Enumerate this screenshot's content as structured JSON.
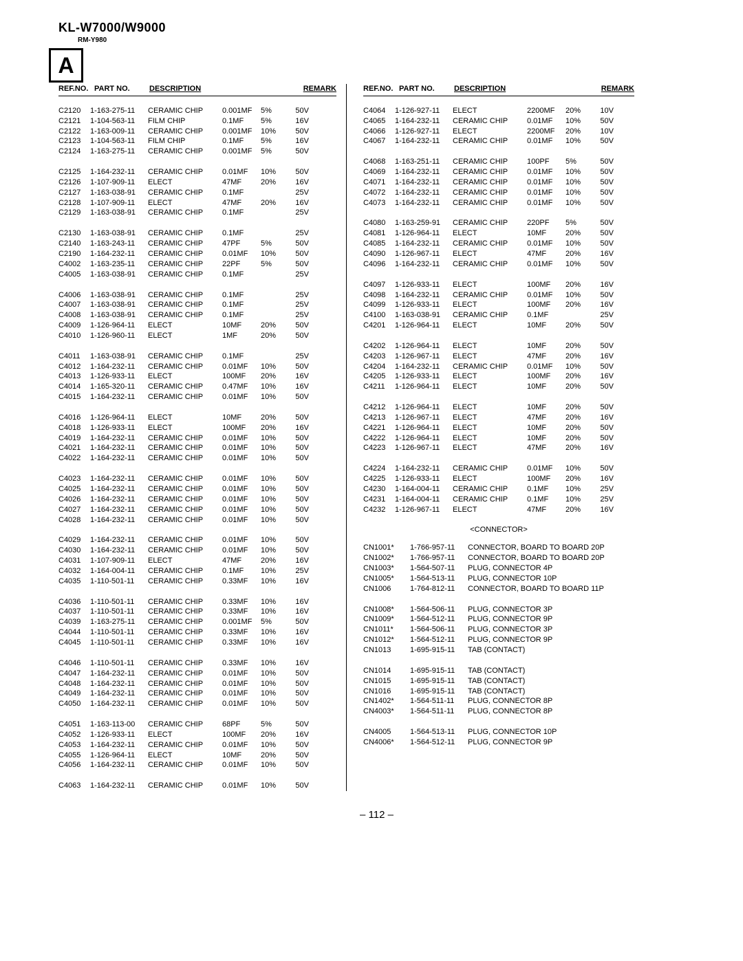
{
  "model_title": "KL-W7000/W9000",
  "sub_model": "RM-Y980",
  "box_letter": "A",
  "page_number": "– 112 –",
  "headers": {
    "ref": "REF.NO.",
    "part": "PART NO.",
    "desc": "DESCRIPTION",
    "remark": "REMARK"
  },
  "section_connector": "<CONNECTOR>",
  "left": [
    {
      "r": "C2120",
      "p": "1-163-275-11",
      "d": "CERAMIC CHIP",
      "v": "0.001MF",
      "t": "5%",
      "m": "50V"
    },
    {
      "r": "C2121",
      "p": "1-104-563-11",
      "d": "FILM CHIP",
      "v": "0.1MF",
      "t": "5%",
      "m": "16V"
    },
    {
      "r": "C2122",
      "p": "1-163-009-11",
      "d": "CERAMIC CHIP",
      "v": "0.001MF",
      "t": "10%",
      "m": "50V"
    },
    {
      "r": "C2123",
      "p": "1-104-563-11",
      "d": "FILM CHIP",
      "v": "0.1MF",
      "t": "5%",
      "m": "16V"
    },
    {
      "r": "C2124",
      "p": "1-163-275-11",
      "d": "CERAMIC CHIP",
      "v": "0.001MF",
      "t": "5%",
      "m": "50V"
    },
    "blank",
    {
      "r": "C2125",
      "p": "1-164-232-11",
      "d": "CERAMIC CHIP",
      "v": "0.01MF",
      "t": "10%",
      "m": "50V"
    },
    {
      "r": "C2126",
      "p": "1-107-909-11",
      "d": "ELECT",
      "v": "47MF",
      "t": "20%",
      "m": "16V"
    },
    {
      "r": "C2127",
      "p": "1-163-038-91",
      "d": "CERAMIC CHIP",
      "v": "0.1MF",
      "t": "",
      "m": "25V"
    },
    {
      "r": "C2128",
      "p": "1-107-909-11",
      "d": "ELECT",
      "v": "47MF",
      "t": "20%",
      "m": "16V"
    },
    {
      "r": "C2129",
      "p": "1-163-038-91",
      "d": "CERAMIC CHIP",
      "v": "0.1MF",
      "t": "",
      "m": "25V"
    },
    "blank",
    {
      "r": "C2130",
      "p": "1-163-038-91",
      "d": "CERAMIC CHIP",
      "v": "0.1MF",
      "t": "",
      "m": "25V"
    },
    {
      "r": "C2140",
      "p": "1-163-243-11",
      "d": "CERAMIC CHIP",
      "v": "47PF",
      "t": "5%",
      "m": "50V"
    },
    {
      "r": "C2190",
      "p": "1-164-232-11",
      "d": "CERAMIC CHIP",
      "v": "0.01MF",
      "t": "10%",
      "m": "50V"
    },
    {
      "r": "C4002",
      "p": "1-163-235-11",
      "d": "CERAMIC CHIP",
      "v": "22PF",
      "t": "5%",
      "m": "50V"
    },
    {
      "r": "C4005",
      "p": "1-163-038-91",
      "d": "CERAMIC CHIP",
      "v": "0.1MF",
      "t": "",
      "m": "25V"
    },
    "blank",
    {
      "r": "C4006",
      "p": "1-163-038-91",
      "d": "CERAMIC CHIP",
      "v": "0.1MF",
      "t": "",
      "m": "25V"
    },
    {
      "r": "C4007",
      "p": "1-163-038-91",
      "d": "CERAMIC CHIP",
      "v": "0.1MF",
      "t": "",
      "m": "25V"
    },
    {
      "r": "C4008",
      "p": "1-163-038-91",
      "d": "CERAMIC CHIP",
      "v": "0.1MF",
      "t": "",
      "m": "25V"
    },
    {
      "r": "C4009",
      "p": "1-126-964-11",
      "d": "ELECT",
      "v": "10MF",
      "t": "20%",
      "m": "50V"
    },
    {
      "r": "C4010",
      "p": "1-126-960-11",
      "d": "ELECT",
      "v": "1MF",
      "t": "20%",
      "m": "50V"
    },
    "blank",
    {
      "r": "C4011",
      "p": "1-163-038-91",
      "d": "CERAMIC CHIP",
      "v": "0.1MF",
      "t": "",
      "m": "25V"
    },
    {
      "r": "C4012",
      "p": "1-164-232-11",
      "d": "CERAMIC CHIP",
      "v": "0.01MF",
      "t": "10%",
      "m": "50V"
    },
    {
      "r": "C4013",
      "p": "1-126-933-11",
      "d": "ELECT",
      "v": "100MF",
      "t": "20%",
      "m": "16V"
    },
    {
      "r": "C4014",
      "p": "1-165-320-11",
      "d": "CERAMIC CHIP",
      "v": "0.47MF",
      "t": "10%",
      "m": "16V"
    },
    {
      "r": "C4015",
      "p": "1-164-232-11",
      "d": "CERAMIC CHIP",
      "v": "0.01MF",
      "t": "10%",
      "m": "50V"
    },
    "blank",
    {
      "r": "C4016",
      "p": "1-126-964-11",
      "d": "ELECT",
      "v": "10MF",
      "t": "20%",
      "m": "50V"
    },
    {
      "r": "C4018",
      "p": "1-126-933-11",
      "d": "ELECT",
      "v": "100MF",
      "t": "20%",
      "m": "16V"
    },
    {
      "r": "C4019",
      "p": "1-164-232-11",
      "d": "CERAMIC CHIP",
      "v": "0.01MF",
      "t": "10%",
      "m": "50V"
    },
    {
      "r": "C4021",
      "p": "1-164-232-11",
      "d": "CERAMIC CHIP",
      "v": "0.01MF",
      "t": "10%",
      "m": "50V"
    },
    {
      "r": "C4022",
      "p": "1-164-232-11",
      "d": "CERAMIC CHIP",
      "v": "0.01MF",
      "t": "10%",
      "m": "50V"
    },
    "blank",
    {
      "r": "C4023",
      "p": "1-164-232-11",
      "d": "CERAMIC CHIP",
      "v": "0.01MF",
      "t": "10%",
      "m": "50V"
    },
    {
      "r": "C4025",
      "p": "1-164-232-11",
      "d": "CERAMIC CHIP",
      "v": "0.01MF",
      "t": "10%",
      "m": "50V"
    },
    {
      "r": "C4026",
      "p": "1-164-232-11",
      "d": "CERAMIC CHIP",
      "v": "0.01MF",
      "t": "10%",
      "m": "50V"
    },
    {
      "r": "C4027",
      "p": "1-164-232-11",
      "d": "CERAMIC CHIP",
      "v": "0.01MF",
      "t": "10%",
      "m": "50V"
    },
    {
      "r": "C4028",
      "p": "1-164-232-11",
      "d": "CERAMIC CHIP",
      "v": "0.01MF",
      "t": "10%",
      "m": "50V"
    },
    "blank",
    {
      "r": "C4029",
      "p": "1-164-232-11",
      "d": "CERAMIC CHIP",
      "v": "0.01MF",
      "t": "10%",
      "m": "50V"
    },
    {
      "r": "C4030",
      "p": "1-164-232-11",
      "d": "CERAMIC CHIP",
      "v": "0.01MF",
      "t": "10%",
      "m": "50V"
    },
    {
      "r": "C4031",
      "p": "1-107-909-11",
      "d": "ELECT",
      "v": "47MF",
      "t": "20%",
      "m": "16V"
    },
    {
      "r": "C4032",
      "p": "1-164-004-11",
      "d": "CERAMIC CHIP",
      "v": "0.1MF",
      "t": "10%",
      "m": "25V"
    },
    {
      "r": "C4035",
      "p": "1-110-501-11",
      "d": "CERAMIC CHIP",
      "v": "0.33MF",
      "t": "10%",
      "m": "16V"
    },
    "blank",
    {
      "r": "C4036",
      "p": "1-110-501-11",
      "d": "CERAMIC CHIP",
      "v": "0.33MF",
      "t": "10%",
      "m": "16V"
    },
    {
      "r": "C4037",
      "p": "1-110-501-11",
      "d": "CERAMIC CHIP",
      "v": "0.33MF",
      "t": "10%",
      "m": "16V"
    },
    {
      "r": "C4039",
      "p": "1-163-275-11",
      "d": "CERAMIC CHIP",
      "v": "0.001MF",
      "t": "5%",
      "m": "50V"
    },
    {
      "r": "C4044",
      "p": "1-110-501-11",
      "d": "CERAMIC CHIP",
      "v": "0.33MF",
      "t": "10%",
      "m": "16V"
    },
    {
      "r": "C4045",
      "p": "1-110-501-11",
      "d": "CERAMIC CHIP",
      "v": "0.33MF",
      "t": "10%",
      "m": "16V"
    },
    "blank",
    {
      "r": "C4046",
      "p": "1-110-501-11",
      "d": "CERAMIC CHIP",
      "v": "0.33MF",
      "t": "10%",
      "m": "16V"
    },
    {
      "r": "C4047",
      "p": "1-164-232-11",
      "d": "CERAMIC CHIP",
      "v": "0.01MF",
      "t": "10%",
      "m": "50V"
    },
    {
      "r": "C4048",
      "p": "1-164-232-11",
      "d": "CERAMIC CHIP",
      "v": "0.01MF",
      "t": "10%",
      "m": "50V"
    },
    {
      "r": "C4049",
      "p": "1-164-232-11",
      "d": "CERAMIC CHIP",
      "v": "0.01MF",
      "t": "10%",
      "m": "50V"
    },
    {
      "r": "C4050",
      "p": "1-164-232-11",
      "d": "CERAMIC CHIP",
      "v": "0.01MF",
      "t": "10%",
      "m": "50V"
    },
    "blank",
    {
      "r": "C4051",
      "p": "1-163-113-00",
      "d": "CERAMIC CHIP",
      "v": "68PF",
      "t": "5%",
      "m": "50V"
    },
    {
      "r": "C4052",
      "p": "1-126-933-11",
      "d": "ELECT",
      "v": "100MF",
      "t": "20%",
      "m": "16V"
    },
    {
      "r": "C4053",
      "p": "1-164-232-11",
      "d": "CERAMIC CHIP",
      "v": "0.01MF",
      "t": "10%",
      "m": "50V"
    },
    {
      "r": "C4055",
      "p": "1-126-964-11",
      "d": "ELECT",
      "v": "10MF",
      "t": "20%",
      "m": "50V"
    },
    {
      "r": "C4056",
      "p": "1-164-232-11",
      "d": "CERAMIC CHIP",
      "v": "0.01MF",
      "t": "10%",
      "m": "50V"
    },
    "blank",
    {
      "r": "C4063",
      "p": "1-164-232-11",
      "d": "CERAMIC CHIP",
      "v": "0.01MF",
      "t": "10%",
      "m": "50V"
    }
  ],
  "right": [
    {
      "r": "C4064",
      "p": "1-126-927-11",
      "d": "ELECT",
      "v": "2200MF",
      "t": "20%",
      "m": "10V"
    },
    {
      "r": "C4065",
      "p": "1-164-232-11",
      "d": "CERAMIC CHIP",
      "v": "0.01MF",
      "t": "10%",
      "m": "50V"
    },
    {
      "r": "C4066",
      "p": "1-126-927-11",
      "d": "ELECT",
      "v": "2200MF",
      "t": "20%",
      "m": "10V"
    },
    {
      "r": "C4067",
      "p": "1-164-232-11",
      "d": "CERAMIC CHIP",
      "v": "0.01MF",
      "t": "10%",
      "m": "50V"
    },
    "blank",
    {
      "r": "C4068",
      "p": "1-163-251-11",
      "d": "CERAMIC CHIP",
      "v": "100PF",
      "t": "5%",
      "m": "50V"
    },
    {
      "r": "C4069",
      "p": "1-164-232-11",
      "d": "CERAMIC CHIP",
      "v": "0.01MF",
      "t": "10%",
      "m": "50V"
    },
    {
      "r": "C4071",
      "p": "1-164-232-11",
      "d": "CERAMIC CHIP",
      "v": "0.01MF",
      "t": "10%",
      "m": "50V"
    },
    {
      "r": "C4072",
      "p": "1-164-232-11",
      "d": "CERAMIC CHIP",
      "v": "0.01MF",
      "t": "10%",
      "m": "50V"
    },
    {
      "r": "C4073",
      "p": "1-164-232-11",
      "d": "CERAMIC CHIP",
      "v": "0.01MF",
      "t": "10%",
      "m": "50V"
    },
    "blank",
    {
      "r": "C4080",
      "p": "1-163-259-91",
      "d": "CERAMIC CHIP",
      "v": "220PF",
      "t": "5%",
      "m": "50V"
    },
    {
      "r": "C4081",
      "p": "1-126-964-11",
      "d": "ELECT",
      "v": "10MF",
      "t": "20%",
      "m": "50V"
    },
    {
      "r": "C4085",
      "p": "1-164-232-11",
      "d": "CERAMIC CHIP",
      "v": "0.01MF",
      "t": "10%",
      "m": "50V"
    },
    {
      "r": "C4090",
      "p": "1-126-967-11",
      "d": "ELECT",
      "v": "47MF",
      "t": "20%",
      "m": "16V"
    },
    {
      "r": "C4096",
      "p": "1-164-232-11",
      "d": "CERAMIC CHIP",
      "v": "0.01MF",
      "t": "10%",
      "m": "50V"
    },
    "blank",
    {
      "r": "C4097",
      "p": "1-126-933-11",
      "d": "ELECT",
      "v": "100MF",
      "t": "20%",
      "m": "16V"
    },
    {
      "r": "C4098",
      "p": "1-164-232-11",
      "d": "CERAMIC CHIP",
      "v": "0.01MF",
      "t": "10%",
      "m": "50V"
    },
    {
      "r": "C4099",
      "p": "1-126-933-11",
      "d": "ELECT",
      "v": "100MF",
      "t": "20%",
      "m": "16V"
    },
    {
      "r": "C4100",
      "p": "1-163-038-91",
      "d": "CERAMIC CHIP",
      "v": "0.1MF",
      "t": "",
      "m": "25V"
    },
    {
      "r": "C4201",
      "p": "1-126-964-11",
      "d": "ELECT",
      "v": "10MF",
      "t": "20%",
      "m": "50V"
    },
    "blank",
    {
      "r": "C4202",
      "p": "1-126-964-11",
      "d": "ELECT",
      "v": "10MF",
      "t": "20%",
      "m": "50V"
    },
    {
      "r": "C4203",
      "p": "1-126-967-11",
      "d": "ELECT",
      "v": "47MF",
      "t": "20%",
      "m": "16V"
    },
    {
      "r": "C4204",
      "p": "1-164-232-11",
      "d": "CERAMIC CHIP",
      "v": "0.01MF",
      "t": "10%",
      "m": "50V"
    },
    {
      "r": "C4205",
      "p": "1-126-933-11",
      "d": "ELECT",
      "v": "100MF",
      "t": "20%",
      "m": "16V"
    },
    {
      "r": "C4211",
      "p": "1-126-964-11",
      "d": "ELECT",
      "v": "10MF",
      "t": "20%",
      "m": "50V"
    },
    "blank",
    {
      "r": "C4212",
      "p": "1-126-964-11",
      "d": "ELECT",
      "v": "10MF",
      "t": "20%",
      "m": "50V"
    },
    {
      "r": "C4213",
      "p": "1-126-967-11",
      "d": "ELECT",
      "v": "47MF",
      "t": "20%",
      "m": "16V"
    },
    {
      "r": "C4221",
      "p": "1-126-964-11",
      "d": "ELECT",
      "v": "10MF",
      "t": "20%",
      "m": "50V"
    },
    {
      "r": "C4222",
      "p": "1-126-964-11",
      "d": "ELECT",
      "v": "10MF",
      "t": "20%",
      "m": "50V"
    },
    {
      "r": "C4223",
      "p": "1-126-967-11",
      "d": "ELECT",
      "v": "47MF",
      "t": "20%",
      "m": "16V"
    },
    "blank",
    {
      "r": "C4224",
      "p": "1-164-232-11",
      "d": "CERAMIC CHIP",
      "v": "0.01MF",
      "t": "10%",
      "m": "50V"
    },
    {
      "r": "C4225",
      "p": "1-126-933-11",
      "d": "ELECT",
      "v": "100MF",
      "t": "20%",
      "m": "16V"
    },
    {
      "r": "C4230",
      "p": "1-164-004-11",
      "d": "CERAMIC CHIP",
      "v": "0.1MF",
      "t": "10%",
      "m": "25V"
    },
    {
      "r": "C4231",
      "p": "1-164-004-11",
      "d": "CERAMIC CHIP",
      "v": "0.1MF",
      "t": "10%",
      "m": "25V"
    },
    {
      "r": "C4232",
      "p": "1-126-967-11",
      "d": "ELECT",
      "v": "47MF",
      "t": "20%",
      "m": "16V"
    }
  ],
  "connectors": [
    {
      "r": "CN1001*",
      "p": "1-766-957-11",
      "d": "CONNECTOR, BOARD TO BOARD 20P"
    },
    {
      "r": "CN1002*",
      "p": "1-766-957-11",
      "d": "CONNECTOR, BOARD TO BOARD 20P"
    },
    {
      "r": "CN1003*",
      "p": "1-564-507-11",
      "d": "PLUG, CONNECTOR 4P"
    },
    {
      "r": "CN1005*",
      "p": "1-564-513-11",
      "d": "PLUG, CONNECTOR 10P"
    },
    {
      "r": "CN1006",
      "p": "1-764-812-11",
      "d": "CONNECTOR, BOARD TO BOARD 11P"
    },
    "blank",
    {
      "r": "CN1008*",
      "p": "1-564-506-11",
      "d": "PLUG, CONNECTOR 3P"
    },
    {
      "r": "CN1009*",
      "p": "1-564-512-11",
      "d": "PLUG, CONNECTOR 9P"
    },
    {
      "r": "CN1011*",
      "p": "1-564-506-11",
      "d": "PLUG, CONNECTOR 3P"
    },
    {
      "r": "CN1012*",
      "p": "1-564-512-11",
      "d": "PLUG, CONNECTOR 9P"
    },
    {
      "r": "CN1013",
      "p": "1-695-915-11",
      "d": "TAB (CONTACT)"
    },
    "blank",
    {
      "r": "CN1014",
      "p": "1-695-915-11",
      "d": "TAB (CONTACT)"
    },
    {
      "r": "CN1015",
      "p": "1-695-915-11",
      "d": "TAB (CONTACT)"
    },
    {
      "r": "CN1016",
      "p": "1-695-915-11",
      "d": "TAB (CONTACT)"
    },
    {
      "r": "CN1402*",
      "p": "1-564-511-11",
      "d": "PLUG, CONNECTOR 8P"
    },
    {
      "r": "CN4003*",
      "p": "1-564-511-11",
      "d": "PLUG, CONNECTOR 8P"
    },
    "blank",
    {
      "r": "CN4005",
      "p": "1-564-513-11",
      "d": "PLUG, CONNECTOR 10P"
    },
    {
      "r": "CN4006*",
      "p": "1-564-512-11",
      "d": "PLUG, CONNECTOR 9P"
    }
  ]
}
